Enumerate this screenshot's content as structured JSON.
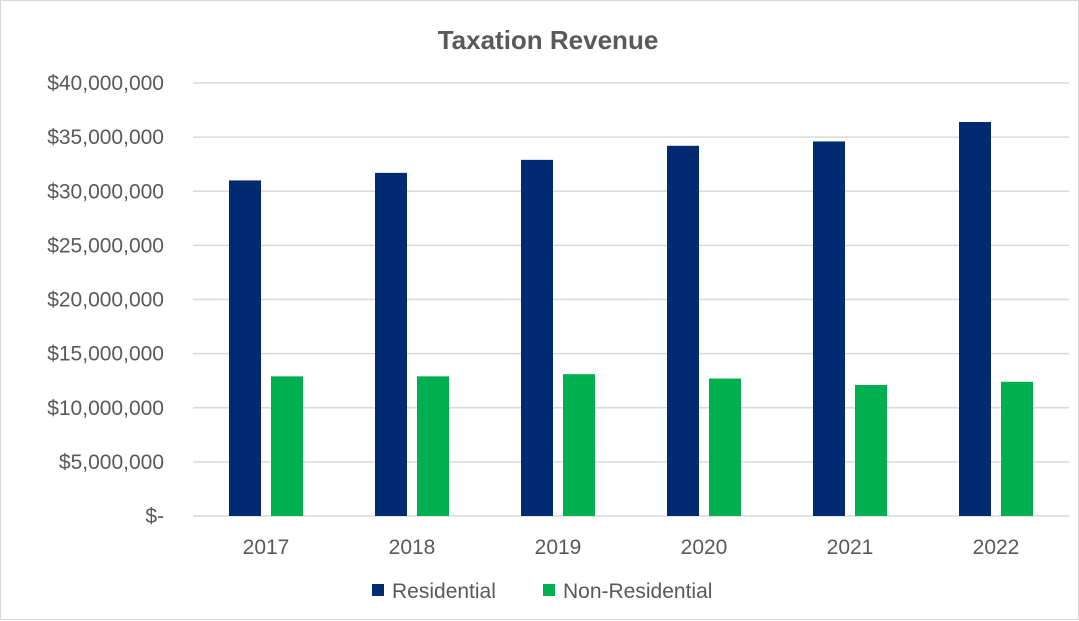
{
  "chart_data": {
    "type": "bar",
    "title": "Taxation Revenue",
    "categories": [
      "2017",
      "2018",
      "2019",
      "2020",
      "2021",
      "2022"
    ],
    "series": [
      {
        "name": "Residential",
        "color": "#002b73",
        "values": [
          31000000,
          31700000,
          32900000,
          34200000,
          34600000,
          36400000
        ]
      },
      {
        "name": "Non-Residential",
        "color": "#00b050",
        "values": [
          12900000,
          12900000,
          13100000,
          12700000,
          12100000,
          12400000
        ]
      }
    ],
    "ylim": [
      0,
      40000000
    ],
    "yticks": [
      {
        "value": 0,
        "label": "$-"
      },
      {
        "value": 5000000,
        "label": "$5,000,000"
      },
      {
        "value": 10000000,
        "label": "$10,000,000"
      },
      {
        "value": 15000000,
        "label": "$15,000,000"
      },
      {
        "value": 20000000,
        "label": "$20,000,000"
      },
      {
        "value": 25000000,
        "label": "$25,000,000"
      },
      {
        "value": 30000000,
        "label": "$30,000,000"
      },
      {
        "value": 35000000,
        "label": "$35,000,000"
      },
      {
        "value": 40000000,
        "label": "$40,000,000"
      }
    ],
    "grid": true,
    "legend": "bottom",
    "grid_color": "#d9d9d9",
    "text_color": "#595959"
  }
}
